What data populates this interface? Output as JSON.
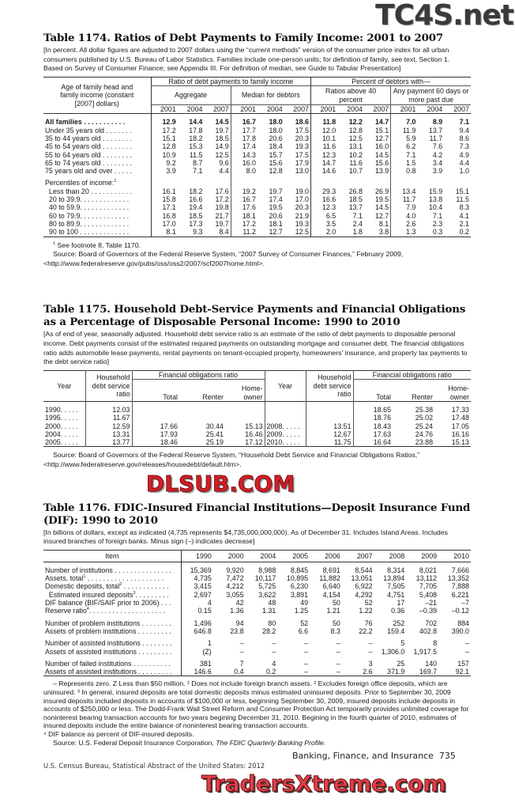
{
  "watermarks": {
    "top": "TC4S.net",
    "middle": "DLSUB.COM",
    "bottom": "TradersXtreme.com"
  },
  "t1174": {
    "title": "Table 1174. Ratios of Debt Payments to Family Income: 2001 to 2007",
    "note": "[In percent. All dollar figures are adjusted to 2007 dollars using the “current methods” version of the consumer price index for all urban consumers published by U.S. Bureau of Labor Statistics. Families include one-person units; for definition of family, see text, Section 1. Based on Survey of Consumer Finance; see Appendix III. For definition of median, see Guide to Tabular Presentation]",
    "stub_header": "Age of family head and family income (constant [2007] dollars)",
    "group1": "Ratio of debt payments to family income",
    "group2": "Percent of debtors with—",
    "sub": [
      "Aggregate",
      "Median for debtors",
      "Ratios above 40 percent",
      "Any payment 60 days or more past due"
    ],
    "years": [
      "2001",
      "2004",
      "2007"
    ],
    "rows": [
      {
        "label": "All families . . . . . . . . . . .",
        "bold": true,
        "v": [
          "12.9",
          "14.4",
          "14.5",
          "16.7",
          "18.0",
          "18.6",
          "11.8",
          "12.2",
          "14.7",
          "7.0",
          "8.9",
          "7.1"
        ]
      },
      {
        "label": "Under 35 years old . . . . . . .",
        "v": [
          "17.2",
          "17.8",
          "19.7",
          "17.7",
          "18.0",
          "17.5",
          "12.0",
          "12.8",
          "15.1",
          "11.9",
          "13.7",
          "9.4"
        ]
      },
      {
        "label": "35 to 44 years old . . . . . . . .",
        "v": [
          "15.1",
          "18.2",
          "18.5",
          "17.8",
          "20.6",
          "20.3",
          "10.1",
          "12.5",
          "12.7",
          "5.9",
          "11.7",
          "8.6"
        ]
      },
      {
        "label": "45 to 54 years old . . . . . . . .",
        "v": [
          "12.8",
          "15.3",
          "14.9",
          "17.4",
          "18.4",
          "19.3",
          "11.6",
          "13.1",
          "16.0",
          "6.2",
          "7.6",
          "7.3"
        ]
      },
      {
        "label": "55 to 64 years old . . . . . . . .",
        "v": [
          "10.9",
          "11.5",
          "12.5",
          "14.3",
          "15.7",
          "17.5",
          "12.3",
          "10.2",
          "14.5",
          "7.1",
          "4.2",
          "4.9"
        ]
      },
      {
        "label": "65 to 74 years old . . . . . . . .",
        "v": [
          "9.2",
          "8.7",
          "9.6",
          "16.0",
          "15.6",
          "17.9",
          "14.7",
          "11.6",
          "15.6",
          "1.5",
          "3.4",
          "4.4"
        ]
      },
      {
        "label": "75 years old and over . . . . .",
        "v": [
          "3.9",
          "7.1",
          "4.4",
          "8.0",
          "12.8",
          "13.0",
          "14.6",
          "10.7",
          "13.9",
          "0.8",
          "3.9",
          "1.0"
        ]
      },
      {
        "label": "Percentiles of income:",
        "sup": "1",
        "gap": true,
        "v": [
          "",
          "",
          "",
          "",
          "",
          "",
          "",
          "",
          "",
          "",
          "",
          ""
        ]
      },
      {
        "label": "  Less than 20 . . . . . . . . . . .",
        "v": [
          "16.1",
          "18.2",
          "17.6",
          "19.2",
          "19.7",
          "19.0",
          "29.3",
          "26.8",
          "26.9",
          "13.4",
          "15.9",
          "15.1"
        ]
      },
      {
        "label": "  20 to 39.9. . . . . . . . . . . . .",
        "v": [
          "15.8",
          "16.6",
          "17.2",
          "16.7",
          "17.4",
          "17.0",
          "16.6",
          "18.5",
          "19.5",
          "11.7",
          "13.8",
          "11.5"
        ]
      },
      {
        "label": "  40 to 59.9. . . . . . . . . . . . .",
        "v": [
          "17.1",
          "19.4",
          "19.8",
          "17.6",
          "19.5",
          "20.3",
          "12.3",
          "13.7",
          "14.5",
          "7.9",
          "10.4",
          "8.3"
        ]
      },
      {
        "label": "  60 to 79.9. . . . . . . . . . . . .",
        "v": [
          "16.8",
          "18.5",
          "21.7",
          "18.1",
          "20.6",
          "21.9",
          "6.5",
          "7.1",
          "12.7",
          "4.0",
          "7.1",
          "4.1"
        ]
      },
      {
        "label": "  80 to 89.9. . . . . . . . . . . . .",
        "v": [
          "17.0",
          "17.3",
          "19.7",
          "17.2",
          "18.1",
          "19.3",
          "3.5",
          "2.4",
          "8.1",
          "2.6",
          "2.3",
          "2.1"
        ]
      },
      {
        "label": "  90 to 100 . . . . . . . . . . . . .",
        "v": [
          "8.1",
          "9.3",
          "8.4",
          "11.2",
          "12.7",
          "12.5",
          "2.0",
          "1.8",
          "3.8",
          "1.3",
          "0.3",
          "0.2"
        ]
      }
    ],
    "footnote_num": "1",
    "footnote": "See footnote 8, Table 1170.",
    "source": "Source: Board of Governors of the Federal Reserve System, “2007 Survey of Consumer Finances,” February 2009, <http://www.federalreserve.gov/pubs/oss/oss2/2007/scf2007home.html>."
  },
  "t1175": {
    "title": "Table 1175. Household Debt-Service Payments and Financial Obligations as a Percentage of Disposable Personal Income: 1990 to 2010",
    "note": "[As of end of year, seasonally adjusted. Household debt service ratio is an estimate of the ratio of debt payments to disposable personal income. Debt payments consist of the estimated required payments on outstanding mortgage and consumer debt. The financial obligations ratio adds automobile lease payments, rental payments on tenant-occupied property, homeowners' insurance, and property tax payments to the debt service ratio]",
    "h_year": "Year",
    "h_dsr": "Household debt service ratio",
    "h_for": "Financial obligations ratio",
    "h_total": "Total",
    "h_renter": "Renter",
    "h_owner": "Home-owner",
    "rows": [
      {
        "y1": "1990. . . . .",
        "d1": "12.03",
        "t1": "",
        "r1": "",
        "o1": "",
        "y2": "",
        "d2": "",
        "t2": "18.65",
        "r2": "25.38",
        "o2": "17.33"
      },
      {
        "y1": "1995. . . . .",
        "d1": "11.67",
        "t1": "",
        "r1": "",
        "o1": "",
        "y2": "",
        "d2": "",
        "t2": "18.76",
        "r2": "25.02",
        "o2": "17.48"
      },
      {
        "y1": "2000. . . . .",
        "d1": "12.59",
        "t1": "17.66",
        "r1": "30.44",
        "o1": "15.13",
        "y2": "2008. . . . .",
        "d2": "13.51",
        "t2": "18.43",
        "r2": "25.24",
        "o2": "17.05"
      },
      {
        "y1": "2004. . . . .",
        "d1": "13.31",
        "t1": "17.93",
        "r1": "25.41",
        "o1": "16.46",
        "y2": "2009. . . . .",
        "d2": "12.67",
        "t2": "17.63",
        "r2": "24.76",
        "o2": "16.16"
      },
      {
        "y1": "2005. . . . .",
        "d1": "13.77",
        "t1": "18.46",
        "r1": "25.19",
        "o1": "17.12",
        "y2": "2010. . . . .",
        "d2": "11.75",
        "t2": "16.64",
        "r2": "23.88",
        "o2": "15.13"
      }
    ],
    "source": "Source: Board of Governors of the Federal Reserve System, “Household Debt Service and Financial Obligations Ratios,” <http://www.federalreserve.gov/releases/housedebt/default.htm>."
  },
  "t1176": {
    "title": "Table 1176. FDIC-Insured Financial Institutions—Deposit Insurance Fund (DIF): 1990 to 2010",
    "note": "[In billions of dollars, except as indicated (4,735 represents $4,735,000,000,000). As of December 31. Includes Island Areas. Includes insured branches of foreign banks. Minus sign (–) indicates decrease]",
    "h_item": "Item",
    "years": [
      "1990",
      "2000",
      "2004",
      "2005",
      "2006",
      "2007",
      "2008",
      "2009",
      "2010"
    ],
    "rows": [
      {
        "label": "Number of institutions . . . . . . . . . . . . . . .",
        "v": [
          "15,369",
          "9,920",
          "8,988",
          "8,845",
          "8,691",
          "8,544",
          "8,314",
          "8,021",
          "7,666"
        ]
      },
      {
        "label": "Assets, total",
        "sup": "1",
        "dots": " . . . . . . . . . . . . . . . . . . . .",
        "v": [
          "4,735",
          "7,472",
          "10,117",
          "10,895",
          "11,882",
          "13,051",
          "13,894",
          "13,112",
          "13,352"
        ]
      },
      {
        "label": "Domestic deposits, total",
        "sup": "2",
        "dots": " . . . . . . . . . . . .",
        "v": [
          "3,415",
          "4,212",
          "5,725",
          "6,230",
          "6,640",
          "6,922",
          "7,505",
          "7,705",
          "7,888"
        ]
      },
      {
        "label": "  Estimated insured deposits",
        "sup": "3",
        "dots": ". . . . . . . . .",
        "v": [
          "2,697",
          "3,055",
          "3,622",
          "3,891",
          "4,154",
          "4,292",
          "4,751",
          "5,408",
          "6,221"
        ]
      },
      {
        "label": "DIF balance (BIF/SAIF prior to 2006) . . .",
        "v": [
          "4",
          "42",
          "48",
          "49",
          "50",
          "52",
          "17",
          "–21",
          "–7"
        ]
      },
      {
        "label": "Reserve ratio",
        "sup": "4",
        "dots": ". . . . . . . . . . . . . . . . . . . .",
        "v": [
          "0.15",
          "1.36",
          "1.31",
          "1.25",
          "1.21",
          "1.22",
          "0.36",
          "–0.39",
          "–0.12"
        ]
      },
      {
        "label": "Number of problem institutions . . . . . . . .",
        "gap": true,
        "v": [
          "1,496",
          "94",
          "80",
          "52",
          "50",
          "76",
          "252",
          "702",
          "884"
        ]
      },
      {
        "label": "Assets of problem institutions . . . . . . . . .",
        "v": [
          "646.8",
          "23.8",
          "28.2",
          "6.6",
          "8.3",
          "22.2",
          "159.4",
          "402.8",
          "390.0"
        ]
      },
      {
        "label": "Number of assisted institutions . . . . . . . .",
        "gap": true,
        "v": [
          "1",
          "–",
          "–",
          "–",
          "–",
          "–",
          "5",
          "8",
          "–"
        ]
      },
      {
        "label": "Assets of assisted institutions . . . . . . . . .",
        "v": [
          "(Z)",
          "–",
          "–",
          "–",
          "–",
          "–",
          "1,306.0",
          "1,917.5",
          "–"
        ]
      },
      {
        "label": "Number of failed institutions . . . . . . . . . .",
        "gap": true,
        "v": [
          "381",
          "7",
          "4",
          "–",
          "–",
          "3",
          "25",
          "140",
          "157"
        ]
      },
      {
        "label": "Assets of assisted institutions . . . . . . . . .",
        "v": [
          "146.6",
          "0.4",
          "0.2",
          "–",
          "–",
          "2.6",
          "371.9",
          "169.7",
          "92.1"
        ]
      }
    ],
    "footnotes": "– Represents zero. Z Less than $50 million. ¹ Does not include foreign branch assets. ² Excludes foreign office deposits, which are uninsured. ³ In general, insured deposits are total domestic deposits minus estimated uninsured deposits. Prior to September 30, 2009 insured deposits included deposits in accounts of $100,000 or less, beginning September 30, 2009, insured deposits include deposits in accounts of $250,000 or less. The Dodd-Frank Wall Street Reform and Consumer Protection Act temporarily provides unlimited coverage for noninterest bearing transaction accounts for two years begining December 31, 2010. Begining in the fourth quarter of 2010, estimates of insured deposits include the entire balance of noninterest bearing transaction accounts.",
    "footnote4": "⁴ DIF balance as percent of DIF-insured deposits.",
    "source_prefix": "Source: U.S. Federal Deposit Insurance Corporation, ",
    "source_title": "The FDIC Quarterly Banking Profile."
  },
  "footer": {
    "section": "Banking, Finance, and Insurance",
    "page": "735",
    "publisher": "U.S. Census Bureau, Statistical Abstract of the United States: 2012"
  }
}
